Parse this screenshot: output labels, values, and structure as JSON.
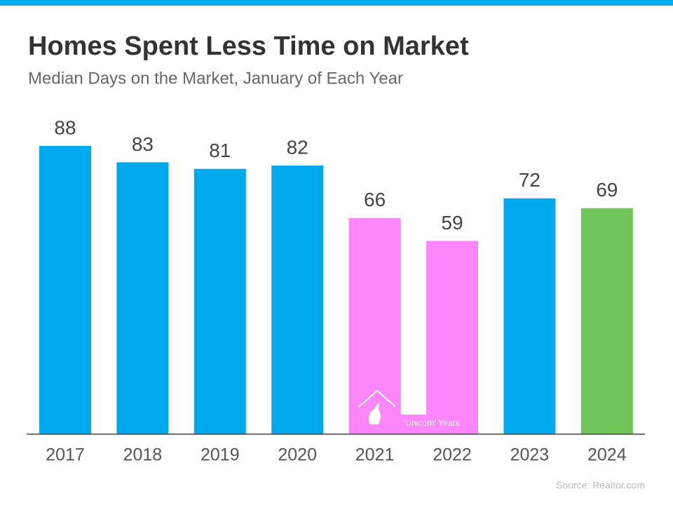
{
  "chart_data": {
    "type": "bar",
    "title": "Homes Spent Less Time on Market",
    "subtitle": "Median Days on the Market, January of Each Year",
    "categories": [
      "2017",
      "2018",
      "2019",
      "2020",
      "2021",
      "2022",
      "2023",
      "2024"
    ],
    "values": [
      88,
      83,
      81,
      82,
      66,
      59,
      72,
      69
    ],
    "colors": [
      "#00a9ec",
      "#00a9ec",
      "#00a9ec",
      "#00a9ec",
      "#fd86fc",
      "#fd86fc",
      "#00a9ec",
      "#70c459"
    ],
    "annotation": "'Unicorn' Years",
    "source": "Source: Realtor.com"
  }
}
